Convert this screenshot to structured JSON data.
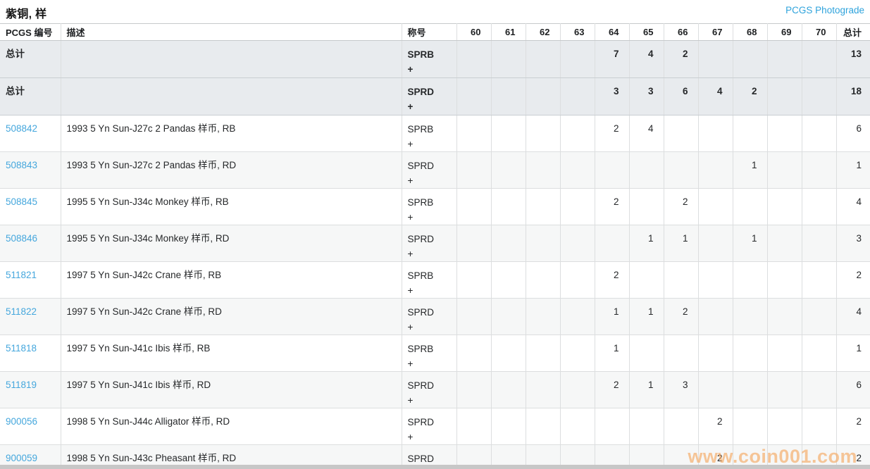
{
  "page": {
    "title": "紫铜, 样",
    "photograde_link": "PCGS Photograde",
    "watermark": "www.coin001.com"
  },
  "colors": {
    "link_blue": "#45a7dd",
    "photograde_blue": "#2ea3dc",
    "total_row_bg": "#e8ebee",
    "stripe_bg": "#f6f7f7",
    "watermark_orange": "#f5a55c"
  },
  "table": {
    "headers": {
      "pcgs_no": "PCGS 编号",
      "description": "描述",
      "designation": "称号",
      "total": "总计"
    },
    "grade_columns": [
      "60",
      "61",
      "62",
      "63",
      "64",
      "65",
      "66",
      "67",
      "68",
      "69",
      "70"
    ],
    "rows": [
      {
        "type": "total",
        "label": "总计",
        "pcgs_no": "",
        "description": "",
        "designation": "SPRB +",
        "grades": {
          "64": 7,
          "65": 4,
          "66": 2
        },
        "total": 13
      },
      {
        "type": "total",
        "label": "总计",
        "pcgs_no": "",
        "description": "",
        "designation": "SPRD +",
        "grades": {
          "64": 3,
          "65": 3,
          "66": 6,
          "67": 4,
          "68": 2
        },
        "total": 18
      },
      {
        "type": "data",
        "pcgs_no": "508842",
        "description": "1993 5 Yn Sun-J27c 2 Pandas 样币, RB",
        "designation": "SPRB +",
        "grades": {
          "64": 2,
          "65": 4
        },
        "total": 6
      },
      {
        "type": "data",
        "pcgs_no": "508843",
        "description": "1993 5 Yn Sun-J27c 2 Pandas 样币, RD",
        "designation": "SPRD +",
        "grades": {
          "68": 1
        },
        "total": 1
      },
      {
        "type": "data",
        "pcgs_no": "508845",
        "description": "1995 5 Yn Sun-J34c Monkey 样币, RB",
        "designation": "SPRB +",
        "grades": {
          "64": 2,
          "66": 2
        },
        "total": 4
      },
      {
        "type": "data",
        "pcgs_no": "508846",
        "description": "1995 5 Yn Sun-J34c Monkey 样币, RD",
        "designation": "SPRD +",
        "grades": {
          "65": 1,
          "66": 1,
          "68": 1
        },
        "total": 3
      },
      {
        "type": "data",
        "pcgs_no": "511821",
        "description": "1997 5 Yn Sun-J42c Crane 样币, RB",
        "designation": "SPRB +",
        "grades": {
          "64": 2
        },
        "total": 2
      },
      {
        "type": "data",
        "pcgs_no": "511822",
        "description": "1997 5 Yn Sun-J42c Crane 样币, RD",
        "designation": "SPRD +",
        "grades": {
          "64": 1,
          "65": 1,
          "66": 2
        },
        "total": 4
      },
      {
        "type": "data",
        "pcgs_no": "511818",
        "description": "1997 5 Yn Sun-J41c Ibis 样币, RB",
        "designation": "SPRB +",
        "grades": {
          "64": 1
        },
        "total": 1
      },
      {
        "type": "data",
        "pcgs_no": "511819",
        "description": "1997 5 Yn Sun-J41c Ibis 样币, RD",
        "designation": "SPRD +",
        "grades": {
          "64": 2,
          "65": 1,
          "66": 3
        },
        "total": 6
      },
      {
        "type": "data",
        "pcgs_no": "900056",
        "description": "1998 5 Yn Sun-J44c Alligator 样币, RD",
        "designation": "SPRD +",
        "grades": {
          "67": 2
        },
        "total": 2
      },
      {
        "type": "data",
        "pcgs_no": "900059",
        "description": "1998 5 Yn Sun-J43c Pheasant 样币, RD",
        "designation": "SPRD +",
        "grades": {
          "67": 2
        },
        "total": 2
      }
    ]
  }
}
